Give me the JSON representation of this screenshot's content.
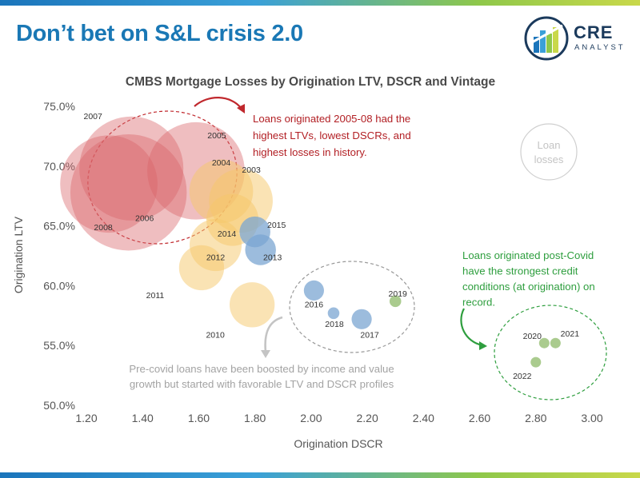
{
  "header": {
    "title": "Don’t bet on S&L crisis 2.0",
    "logo_word": "CRE",
    "logo_sub": "ANALYST"
  },
  "colors": {
    "brand_blue": "#1a78b5",
    "red": "#d9646a",
    "orange": "#f5c86a",
    "blue": "#7ba6d1",
    "green": "#9bc27a",
    "annotation_red": "#b21f24",
    "annotation_green": "#2e9e3e",
    "annotation_gray": "#a3a3a3"
  },
  "chart_data": {
    "type": "bubble",
    "title": "CMBS Mortgage Losses by Origination LTV, DSCR and Vintage",
    "xlabel": "Origination DSCR",
    "ylabel": "Origination LTV",
    "xlim": [
      1.2,
      3.0
    ],
    "ylim": [
      0.5,
      0.75
    ],
    "x_ticks": [
      "1.20",
      "1.40",
      "1.60",
      "1.80",
      "2.00",
      "2.20",
      "2.40",
      "2.60",
      "2.80",
      "3.00"
    ],
    "y_ticks": [
      "50.0%",
      "55.0%",
      "60.0%",
      "65.0%",
      "70.0%",
      "75.0%"
    ],
    "grid": false,
    "size_legend": "Loan losses",
    "points": [
      {
        "year": "2006",
        "dscr": 1.35,
        "ltv": 0.678,
        "size": 10,
        "group": "red"
      },
      {
        "year": "2007",
        "dscr": 1.36,
        "ltv": 0.698,
        "size": 8,
        "group": "red"
      },
      {
        "year": "2008",
        "dscr": 1.28,
        "ltv": 0.685,
        "size": 7,
        "group": "red"
      },
      {
        "year": "2005",
        "dscr": 1.59,
        "ltv": 0.696,
        "size": 7,
        "group": "red"
      },
      {
        "year": "2004",
        "dscr": 1.68,
        "ltv": 0.679,
        "size": 3,
        "group": "orange"
      },
      {
        "year": "2003",
        "dscr": 1.75,
        "ltv": 0.671,
        "size": 3,
        "group": "orange"
      },
      {
        "year": "2014",
        "dscr": 1.72,
        "ltv": 0.655,
        "size": 2,
        "group": "orange"
      },
      {
        "year": "2012",
        "dscr": 1.66,
        "ltv": 0.634,
        "size": 2,
        "group": "orange"
      },
      {
        "year": "2011",
        "dscr": 1.61,
        "ltv": 0.615,
        "size": 1.5,
        "group": "orange"
      },
      {
        "year": "2010",
        "dscr": 1.79,
        "ltv": 0.584,
        "size": 1.5,
        "group": "orange"
      },
      {
        "year": "2015",
        "dscr": 1.8,
        "ltv": 0.645,
        "size": 0.7,
        "group": "blue"
      },
      {
        "year": "2013",
        "dscr": 1.82,
        "ltv": 0.63,
        "size": 0.7,
        "group": "blue"
      },
      {
        "year": "2016",
        "dscr": 2.01,
        "ltv": 0.596,
        "size": 0.3,
        "group": "blue"
      },
      {
        "year": "2018",
        "dscr": 2.08,
        "ltv": 0.577,
        "size": 0.1,
        "group": "blue"
      },
      {
        "year": "2017",
        "dscr": 2.18,
        "ltv": 0.572,
        "size": 0.3,
        "group": "blue"
      },
      {
        "year": "2019",
        "dscr": 2.3,
        "ltv": 0.587,
        "size": 0.1,
        "group": "green"
      },
      {
        "year": "2020",
        "dscr": 2.83,
        "ltv": 0.552,
        "size": 0.08,
        "group": "green"
      },
      {
        "year": "2021",
        "dscr": 2.87,
        "ltv": 0.552,
        "size": 0.08,
        "group": "green"
      },
      {
        "year": "2022",
        "dscr": 2.8,
        "ltv": 0.536,
        "size": 0.08,
        "group": "green"
      }
    ],
    "annotations": {
      "red": [
        "Loans originated 2005-08 had the",
        "highest LTVs, lowest DSCRs, and",
        "highest losses in history."
      ],
      "green": [
        "Loans originated post-Covid",
        "have the strongest credit",
        "conditions (at origination) on",
        "record."
      ],
      "gray": [
        "Pre-covid loans have been boosted by income and value",
        "growth but started with favorable LTV and DSCR profiles"
      ]
    }
  }
}
